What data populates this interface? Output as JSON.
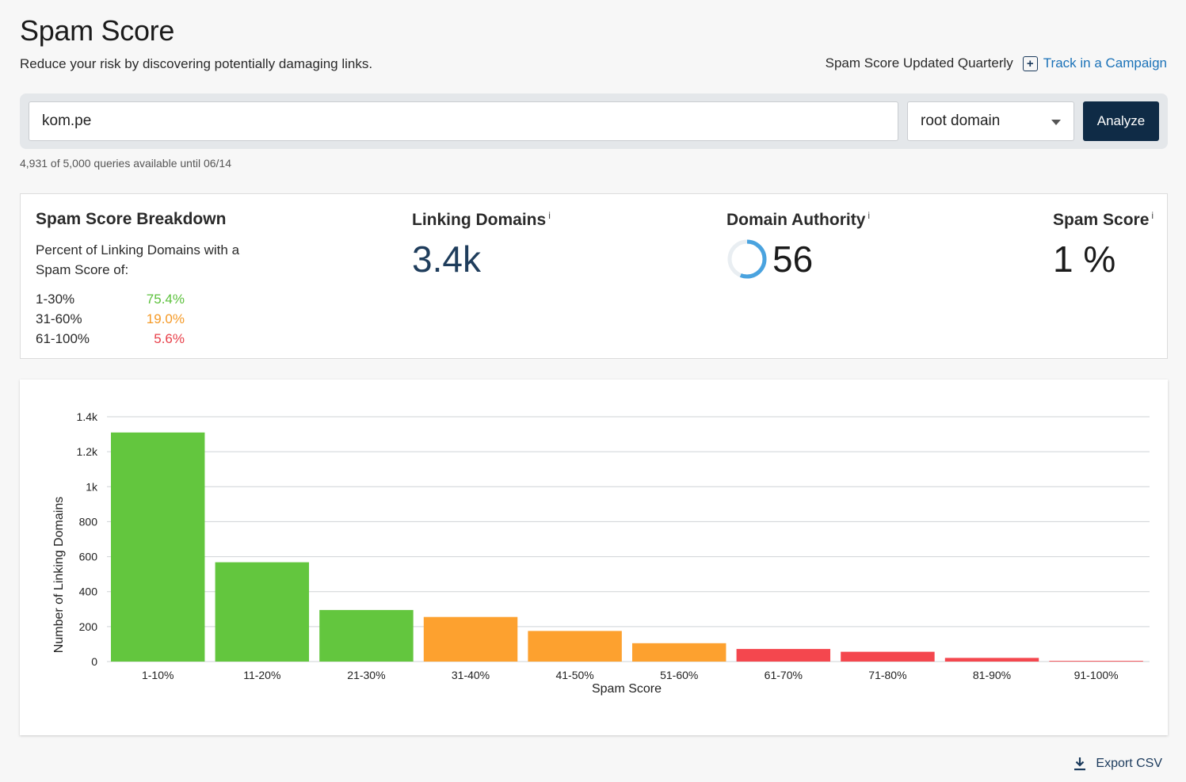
{
  "header": {
    "title": "Spam Score",
    "subtitle": "Reduce your risk by discovering potentially damaging links.",
    "updated_note": "Spam Score Updated Quarterly",
    "track_label": "Track in a Campaign"
  },
  "search": {
    "url_value": "kom.pe",
    "scope_selected": "root domain",
    "analyze_label": "Analyze",
    "quota": "4,931 of 5,000 queries available until 06/14"
  },
  "metrics": {
    "breakdown": {
      "title": "Spam Score Breakdown",
      "description": "Percent of Linking Domains with a Spam Score of:",
      "rows": [
        {
          "range": "1-30%",
          "percent": "75.4%",
          "color": "#5cc13c"
        },
        {
          "range": "31-60%",
          "percent": "19.0%",
          "color": "#f59a27"
        },
        {
          "range": "61-100%",
          "percent": "5.6%",
          "color": "#e8404a"
        }
      ]
    },
    "linking_domains": {
      "title": "Linking Domains",
      "value": "3.4k",
      "info": "i"
    },
    "domain_authority": {
      "title": "Domain Authority",
      "value": "56",
      "info": "i",
      "ring_fraction": 0.56,
      "ring_color": "#4aa3df"
    },
    "spam_score": {
      "title": "Spam Score",
      "value": "1 %",
      "info": "i"
    }
  },
  "chart_data": {
    "type": "bar",
    "xlabel": "Spam Score",
    "ylabel": "Number of Linking Domains",
    "categories": [
      "1-10%",
      "11-20%",
      "21-30%",
      "31-40%",
      "41-50%",
      "51-60%",
      "61-70%",
      "71-80%",
      "81-90%",
      "91-100%"
    ],
    "values": [
      1310,
      568,
      295,
      255,
      175,
      105,
      72,
      56,
      21,
      4
    ],
    "colors": [
      "#63c63e",
      "#63c63e",
      "#63c63e",
      "#fda12f",
      "#fda12f",
      "#fda12f",
      "#f4474e",
      "#f4474e",
      "#f4474e",
      "#f4474e"
    ],
    "yticks": [
      0,
      200,
      400,
      600,
      800,
      1000,
      1200,
      1400
    ],
    "ytick_labels": [
      "0",
      "200",
      "400",
      "600",
      "800",
      "1k",
      "1.2k",
      "1.4k"
    ],
    "ylim": [
      0,
      1400
    ],
    "grid": true
  },
  "export": {
    "label": "Export CSV"
  }
}
